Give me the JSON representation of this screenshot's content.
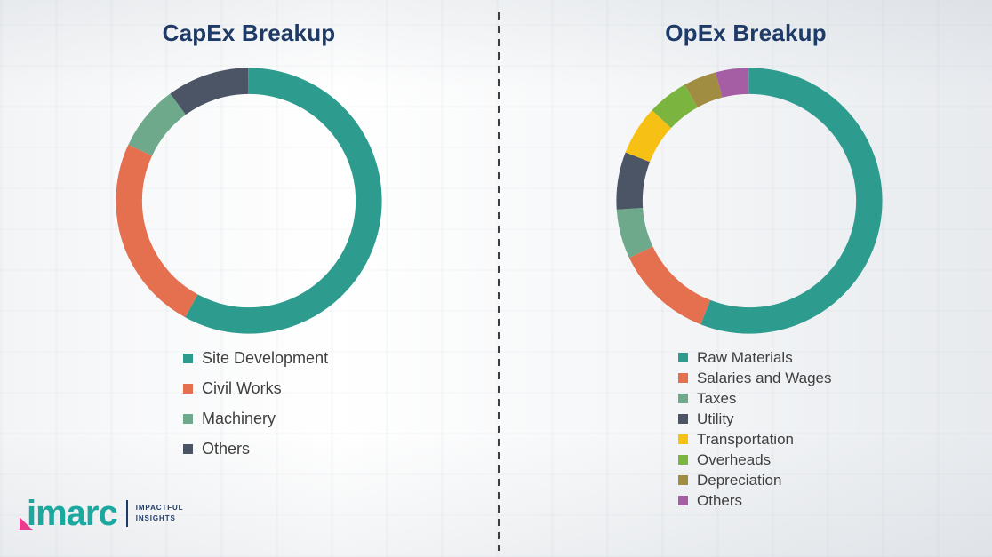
{
  "chart_data": [
    {
      "type": "pie",
      "subtype": "donut",
      "title": "CapEx Breakup",
      "labels": [
        "Site Development",
        "Civil Works",
        "Machinery",
        "Others"
      ],
      "values": [
        58,
        24,
        8,
        10
      ],
      "unit": "percent-estimated",
      "colors": [
        "#2D9C8E",
        "#E4704F",
        "#6FA98B",
        "#4C5566"
      ],
      "legend_position": "below-chart-left",
      "start_angle": "top",
      "direction": "clockwise"
    },
    {
      "type": "pie",
      "subtype": "donut",
      "title": "OpEx Breakup",
      "labels": [
        "Raw Materials",
        "Salaries and Wages",
        "Taxes",
        "Utility",
        "Transportation",
        "Overheads",
        "Depreciation",
        "Others"
      ],
      "values": [
        56,
        12,
        6,
        7,
        6,
        5,
        4,
        4
      ],
      "unit": "percent-estimated",
      "colors": [
        "#2D9C8E",
        "#E4704F",
        "#6FA98B",
        "#4C5566",
        "#F7C015",
        "#7BB53F",
        "#A18D42",
        "#A55EA4"
      ],
      "legend_position": "below-chart-left",
      "start_angle": "top",
      "direction": "clockwise"
    }
  ],
  "logo": {
    "brand": "imarc",
    "tagline_line1": "IMPACTFUL",
    "tagline_line2": "INSIGHTS",
    "brand_color": "#1BA89F",
    "accent_color": "#EC3B8E",
    "tagline_color": "#1F3A68"
  },
  "divider": {
    "style": "vertical-dashed"
  }
}
